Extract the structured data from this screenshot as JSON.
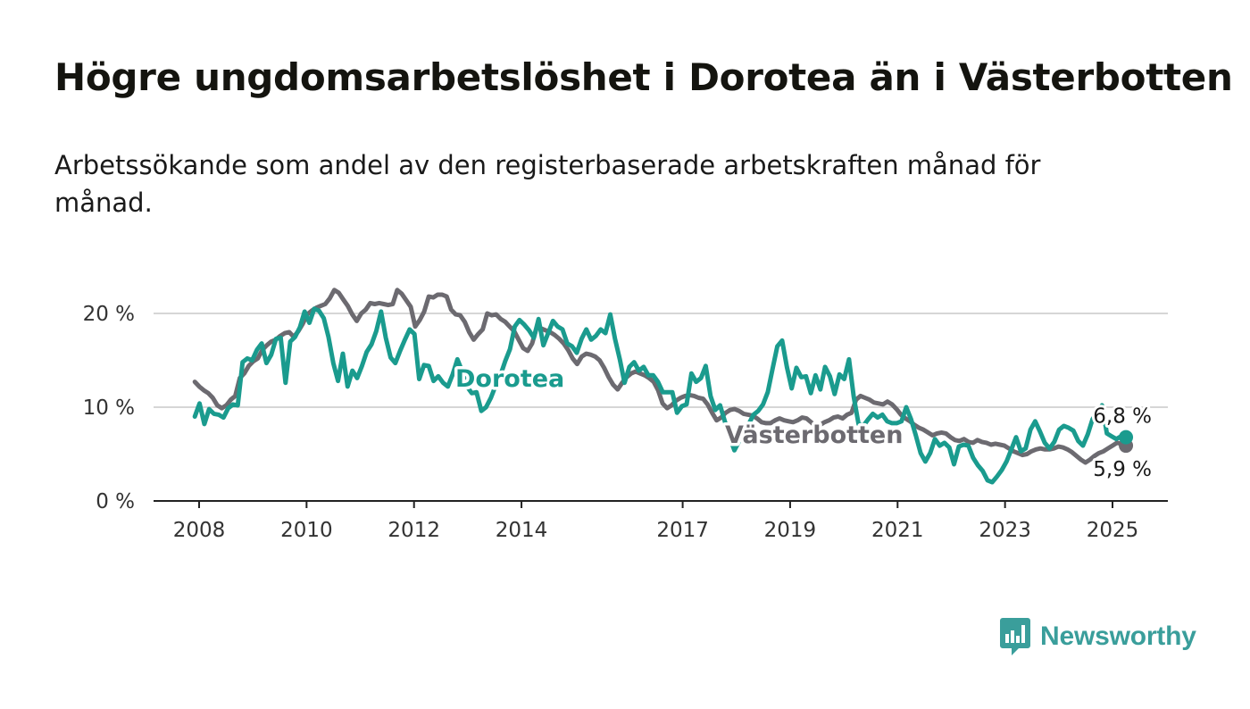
{
  "title": "Högre ungdomsarbetslöshet i Dorotea än i Västerbotten",
  "subtitle": "Arbetssökande som andel av den registerbaserade arbetskraften månad för månad.",
  "brand": {
    "name": "Newsworthy",
    "icon": "newsworthy-bar-chart-icon",
    "color": "#3a9e9b"
  },
  "chart_data": {
    "type": "line",
    "ylim": [
      0,
      20
    ],
    "y_ticks": [
      0,
      10,
      20
    ],
    "y_tick_labels": [
      "0 %",
      "10 %",
      "20 %"
    ],
    "x_range": [
      2007.92,
      2025.25
    ],
    "x_ticks": [
      2008,
      2010,
      2012,
      2014,
      2017,
      2019,
      2021,
      2023,
      2025
    ],
    "x_tick_labels": [
      "2008",
      "2010",
      "2012",
      "2014",
      "2017",
      "2019",
      "2021",
      "2023",
      "2025"
    ],
    "grid": true,
    "legend": "inline labels",
    "series": [
      {
        "name": "Västerbotten",
        "color": "#6c6a70",
        "end_label": "5,9 %",
        "values": [
          12.7,
          12.2,
          11.8,
          11.5,
          11.0,
          10.2,
          9.9,
          10.2,
          10.8,
          11.2,
          13.1,
          13.6,
          14.4,
          14.9,
          15.2,
          16.1,
          16.6,
          17.0,
          17.2,
          17.6,
          17.9,
          18.0,
          17.5,
          18.1,
          18.9,
          19.9,
          20.3,
          20.6,
          20.8,
          21.0,
          21.6,
          22.5,
          22.2,
          21.5,
          20.8,
          19.9,
          19.2,
          20.0,
          20.4,
          21.1,
          21.0,
          21.1,
          21.0,
          20.9,
          21.0,
          22.5,
          22.1,
          21.4,
          20.7,
          18.6,
          19.3,
          20.2,
          21.8,
          21.7,
          22.0,
          22.0,
          21.8,
          20.4,
          19.9,
          19.8,
          19.1,
          18.0,
          17.2,
          17.8,
          18.3,
          20.0,
          19.8,
          19.9,
          19.4,
          19.1,
          18.6,
          18.1,
          17.2,
          16.3,
          16.0,
          16.8,
          18.5,
          18.4,
          18.2,
          18.0,
          17.7,
          17.3,
          16.8,
          16.1,
          15.2,
          14.6,
          15.4,
          15.7,
          15.6,
          15.4,
          15.0,
          14.2,
          13.2,
          12.4,
          11.9,
          12.6,
          13.2,
          13.6,
          13.8,
          13.6,
          13.4,
          13.1,
          12.7,
          11.8,
          10.4,
          9.9,
          10.2,
          10.7,
          11.0,
          11.2,
          11.3,
          11.2,
          11.0,
          10.9,
          10.3,
          9.4,
          8.6,
          8.9,
          9.4,
          9.7,
          9.8,
          9.6,
          9.3,
          9.2,
          9.1,
          8.8,
          8.4,
          8.3,
          8.3,
          8.6,
          8.8,
          8.6,
          8.5,
          8.4,
          8.6,
          8.9,
          8.8,
          8.4,
          8.0,
          8.1,
          8.4,
          8.6,
          8.9,
          9.0,
          8.8,
          9.2,
          9.4,
          10.8,
          11.2,
          11.0,
          10.8,
          10.5,
          10.4,
          10.3,
          10.6,
          10.3,
          9.8,
          9.2,
          8.8,
          8.5,
          8.1,
          7.8,
          7.6,
          7.3,
          7.0,
          7.2,
          7.3,
          7.2,
          6.8,
          6.5,
          6.4,
          6.6,
          6.3,
          6.2,
          6.5,
          6.3,
          6.2,
          6.0,
          6.1,
          6.0,
          5.9,
          5.6,
          5.3,
          5.1,
          4.9,
          5.0,
          5.3,
          5.5,
          5.6,
          5.5,
          5.5,
          5.6,
          5.8,
          5.7,
          5.5,
          5.2,
          4.8,
          4.4,
          4.1,
          4.4,
          4.8,
          5.1,
          5.3,
          5.6,
          5.9,
          6.2,
          6.1,
          5.9
        ]
      },
      {
        "name": "Dorotea",
        "color": "#1a9b8e",
        "end_label": "6,8 %",
        "values": [
          9.0,
          10.4,
          8.2,
          9.8,
          9.3,
          9.2,
          8.9,
          9.9,
          10.3,
          10.2,
          14.8,
          15.2,
          15.0,
          16.1,
          16.8,
          14.7,
          15.6,
          17.3,
          17.4,
          12.6,
          17.0,
          17.5,
          18.5,
          20.2,
          19.0,
          20.5,
          20.3,
          19.5,
          17.5,
          14.7,
          12.8,
          15.7,
          12.2,
          13.9,
          13.1,
          14.4,
          15.9,
          16.7,
          18.1,
          20.2,
          17.4,
          15.3,
          14.7,
          16.0,
          17.2,
          18.3,
          17.8,
          13.0,
          14.5,
          14.4,
          12.8,
          13.3,
          12.6,
          12.2,
          13.5,
          15.1,
          13.8,
          12.2,
          11.5,
          11.6,
          9.6,
          10.0,
          11.0,
          12.3,
          13.4,
          14.9,
          16.2,
          18.6,
          19.3,
          18.8,
          18.2,
          17.4,
          19.4,
          16.6,
          17.9,
          19.2,
          18.6,
          18.3,
          16.8,
          16.5,
          15.8,
          17.3,
          18.3,
          17.2,
          17.6,
          18.3,
          17.9,
          19.9,
          17.3,
          15.1,
          12.6,
          14.3,
          14.8,
          13.9,
          14.3,
          13.4,
          13.4,
          12.7,
          11.6,
          11.6,
          11.6,
          9.4,
          10.1,
          10.3,
          13.6,
          12.7,
          13.1,
          14.4,
          11.2,
          9.7,
          10.2,
          8.5,
          6.8,
          5.4,
          6.4,
          7.1,
          8.2,
          9.2,
          9.6,
          10.3,
          11.6,
          14.1,
          16.5,
          17.1,
          14.3,
          12.0,
          14.2,
          13.2,
          13.3,
          11.5,
          13.4,
          11.9,
          14.3,
          13.3,
          11.4,
          13.5,
          13.0,
          15.1,
          11.1,
          8.2,
          8.0,
          8.7,
          9.3,
          8.9,
          9.2,
          8.5,
          8.3,
          8.3,
          8.5,
          10.0,
          8.7,
          7.0,
          5.1,
          4.2,
          5.1,
          6.6,
          5.9,
          6.2,
          5.7,
          3.9,
          5.8,
          6.0,
          5.9,
          4.6,
          3.8,
          3.2,
          2.2,
          2.0,
          2.6,
          3.3,
          4.2,
          5.5,
          6.8,
          5.3,
          5.6,
          7.6,
          8.5,
          7.4,
          6.2,
          5.6,
          6.3,
          7.6,
          8.0,
          7.8,
          7.5,
          6.4,
          5.9,
          7.1,
          8.7,
          9.5,
          10.2,
          7.2,
          6.9,
          6.6,
          6.9,
          6.8
        ]
      }
    ]
  }
}
